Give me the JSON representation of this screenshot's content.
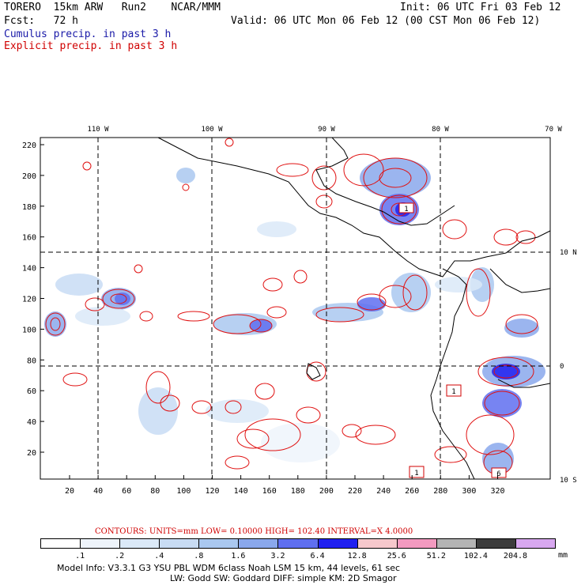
{
  "header": {
    "left1": "TORERO  15km ARW   Run2    NCAR/MMM",
    "left2": "Fcst:   72 h",
    "init": "Init: 06 UTC Fri 03 Feb 12",
    "valid": "Valid: 06 UTC Mon 06 Feb 12 (00 CST Mon 06 Feb 12)",
    "cumulus": "Cumulus precip. in past 3 h",
    "explicit": "Explicit precip. in past 3 h"
  },
  "map": {
    "lon_labels": [
      "110 W",
      "100 W",
      "90 W",
      "80 W",
      "70 W"
    ],
    "lat_labels": [
      "10 N",
      "0",
      "10 S"
    ],
    "y_ticks": [
      "220",
      "200",
      "180",
      "160",
      "140",
      "120",
      "100",
      "80",
      "60",
      "40",
      "20"
    ],
    "x_ticks": [
      "20",
      "40",
      "60",
      "80",
      "100",
      "120",
      "140",
      "160",
      "180",
      "200",
      "220",
      "240",
      "260",
      "280",
      "300",
      "320"
    ],
    "box_labels": [
      "1",
      "1",
      "1",
      "6"
    ]
  },
  "colorbar": {
    "contours_text": "CONTOURS:  UNITS=mm  LOW= 0.10000      HIGH=  102.40     INTERVAL=X  4.0000",
    "labels": [
      ".1",
      ".2",
      ".4",
      ".8",
      "1.6",
      "3.2",
      "6.4",
      "12.8",
      "25.6",
      "51.2",
      "102.4",
      "204.8"
    ],
    "units": "mm",
    "colors": [
      "#ffffff",
      "#eef4fb",
      "#dbe9f8",
      "#c8dcf4",
      "#aac8f0",
      "#8aa8ec",
      "#5f6ff0",
      "#2020f0",
      "#f6c8cc",
      "#f39ac0",
      "#b4b4b4",
      "#3c3c3c",
      "#d8a8f0"
    ]
  },
  "footer": {
    "line1": "Model Info: V3.3.1    G3      YSU PBL   WDM 6class  Noah LSM  15 km,   44 levels,   61 sec",
    "line2": "LW: Godd SW: Goddard DIFF: simple KM: 2D Smagor"
  }
}
